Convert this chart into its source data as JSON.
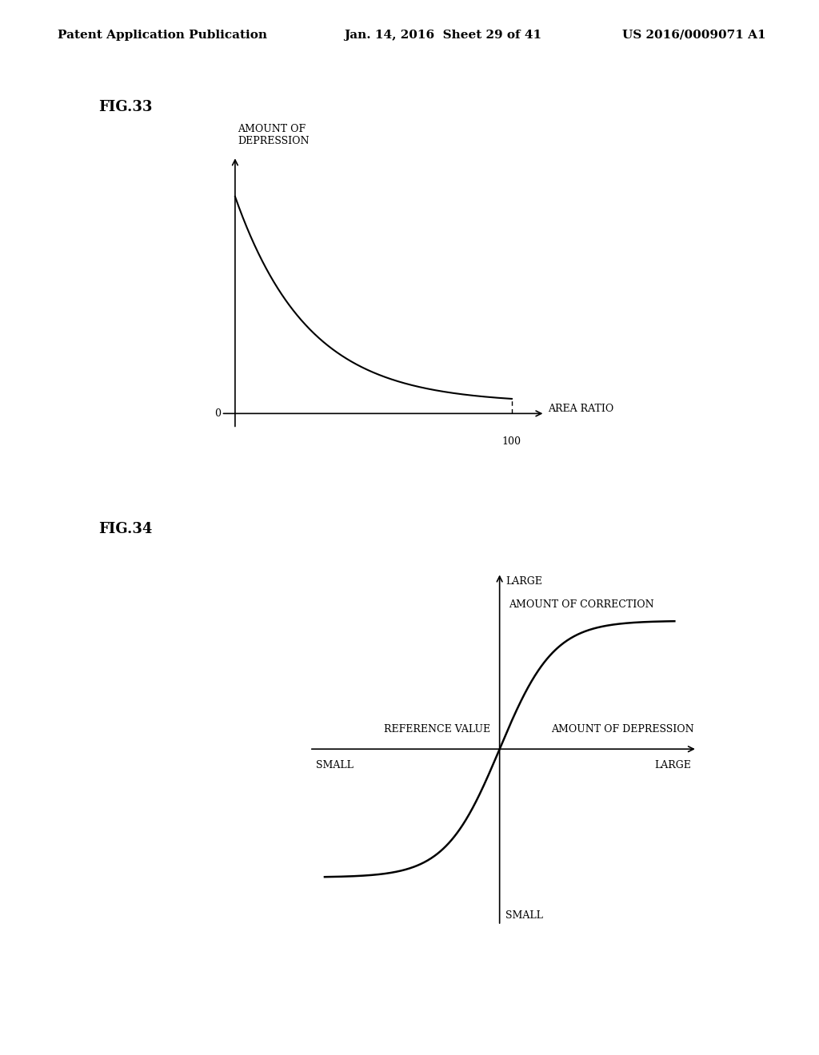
{
  "bg_color": "#ffffff",
  "header_text": "Patent Application Publication",
  "header_date": "Jan. 14, 2016  Sheet 29 of 41",
  "header_patent": "US 2016/0009071 A1",
  "fig33_label": "FIG.33",
  "fig33_ylabel": "AMOUNT OF\nDEPRESSION",
  "fig33_xlabel": "AREA RATIO",
  "fig33_tick0": "0",
  "fig33_tick100": "100",
  "fig34_label": "FIG.34",
  "fig34_ylabel_large": "LARGE",
  "fig34_ylabel_small": "SMALL",
  "fig34_ylabel_label": "AMOUNT OF CORRECTION",
  "fig34_xlabel_label": "AMOUNT OF DEPRESSION",
  "fig34_xlabel_large": "LARGE",
  "fig34_xlabel_small": "SMALL",
  "fig34_ref_label": "REFERENCE VALUE",
  "line_color": "#000000",
  "font_size_header": 11,
  "font_size_figlabel": 13,
  "font_size_axislabel": 9,
  "font_size_tick": 9
}
